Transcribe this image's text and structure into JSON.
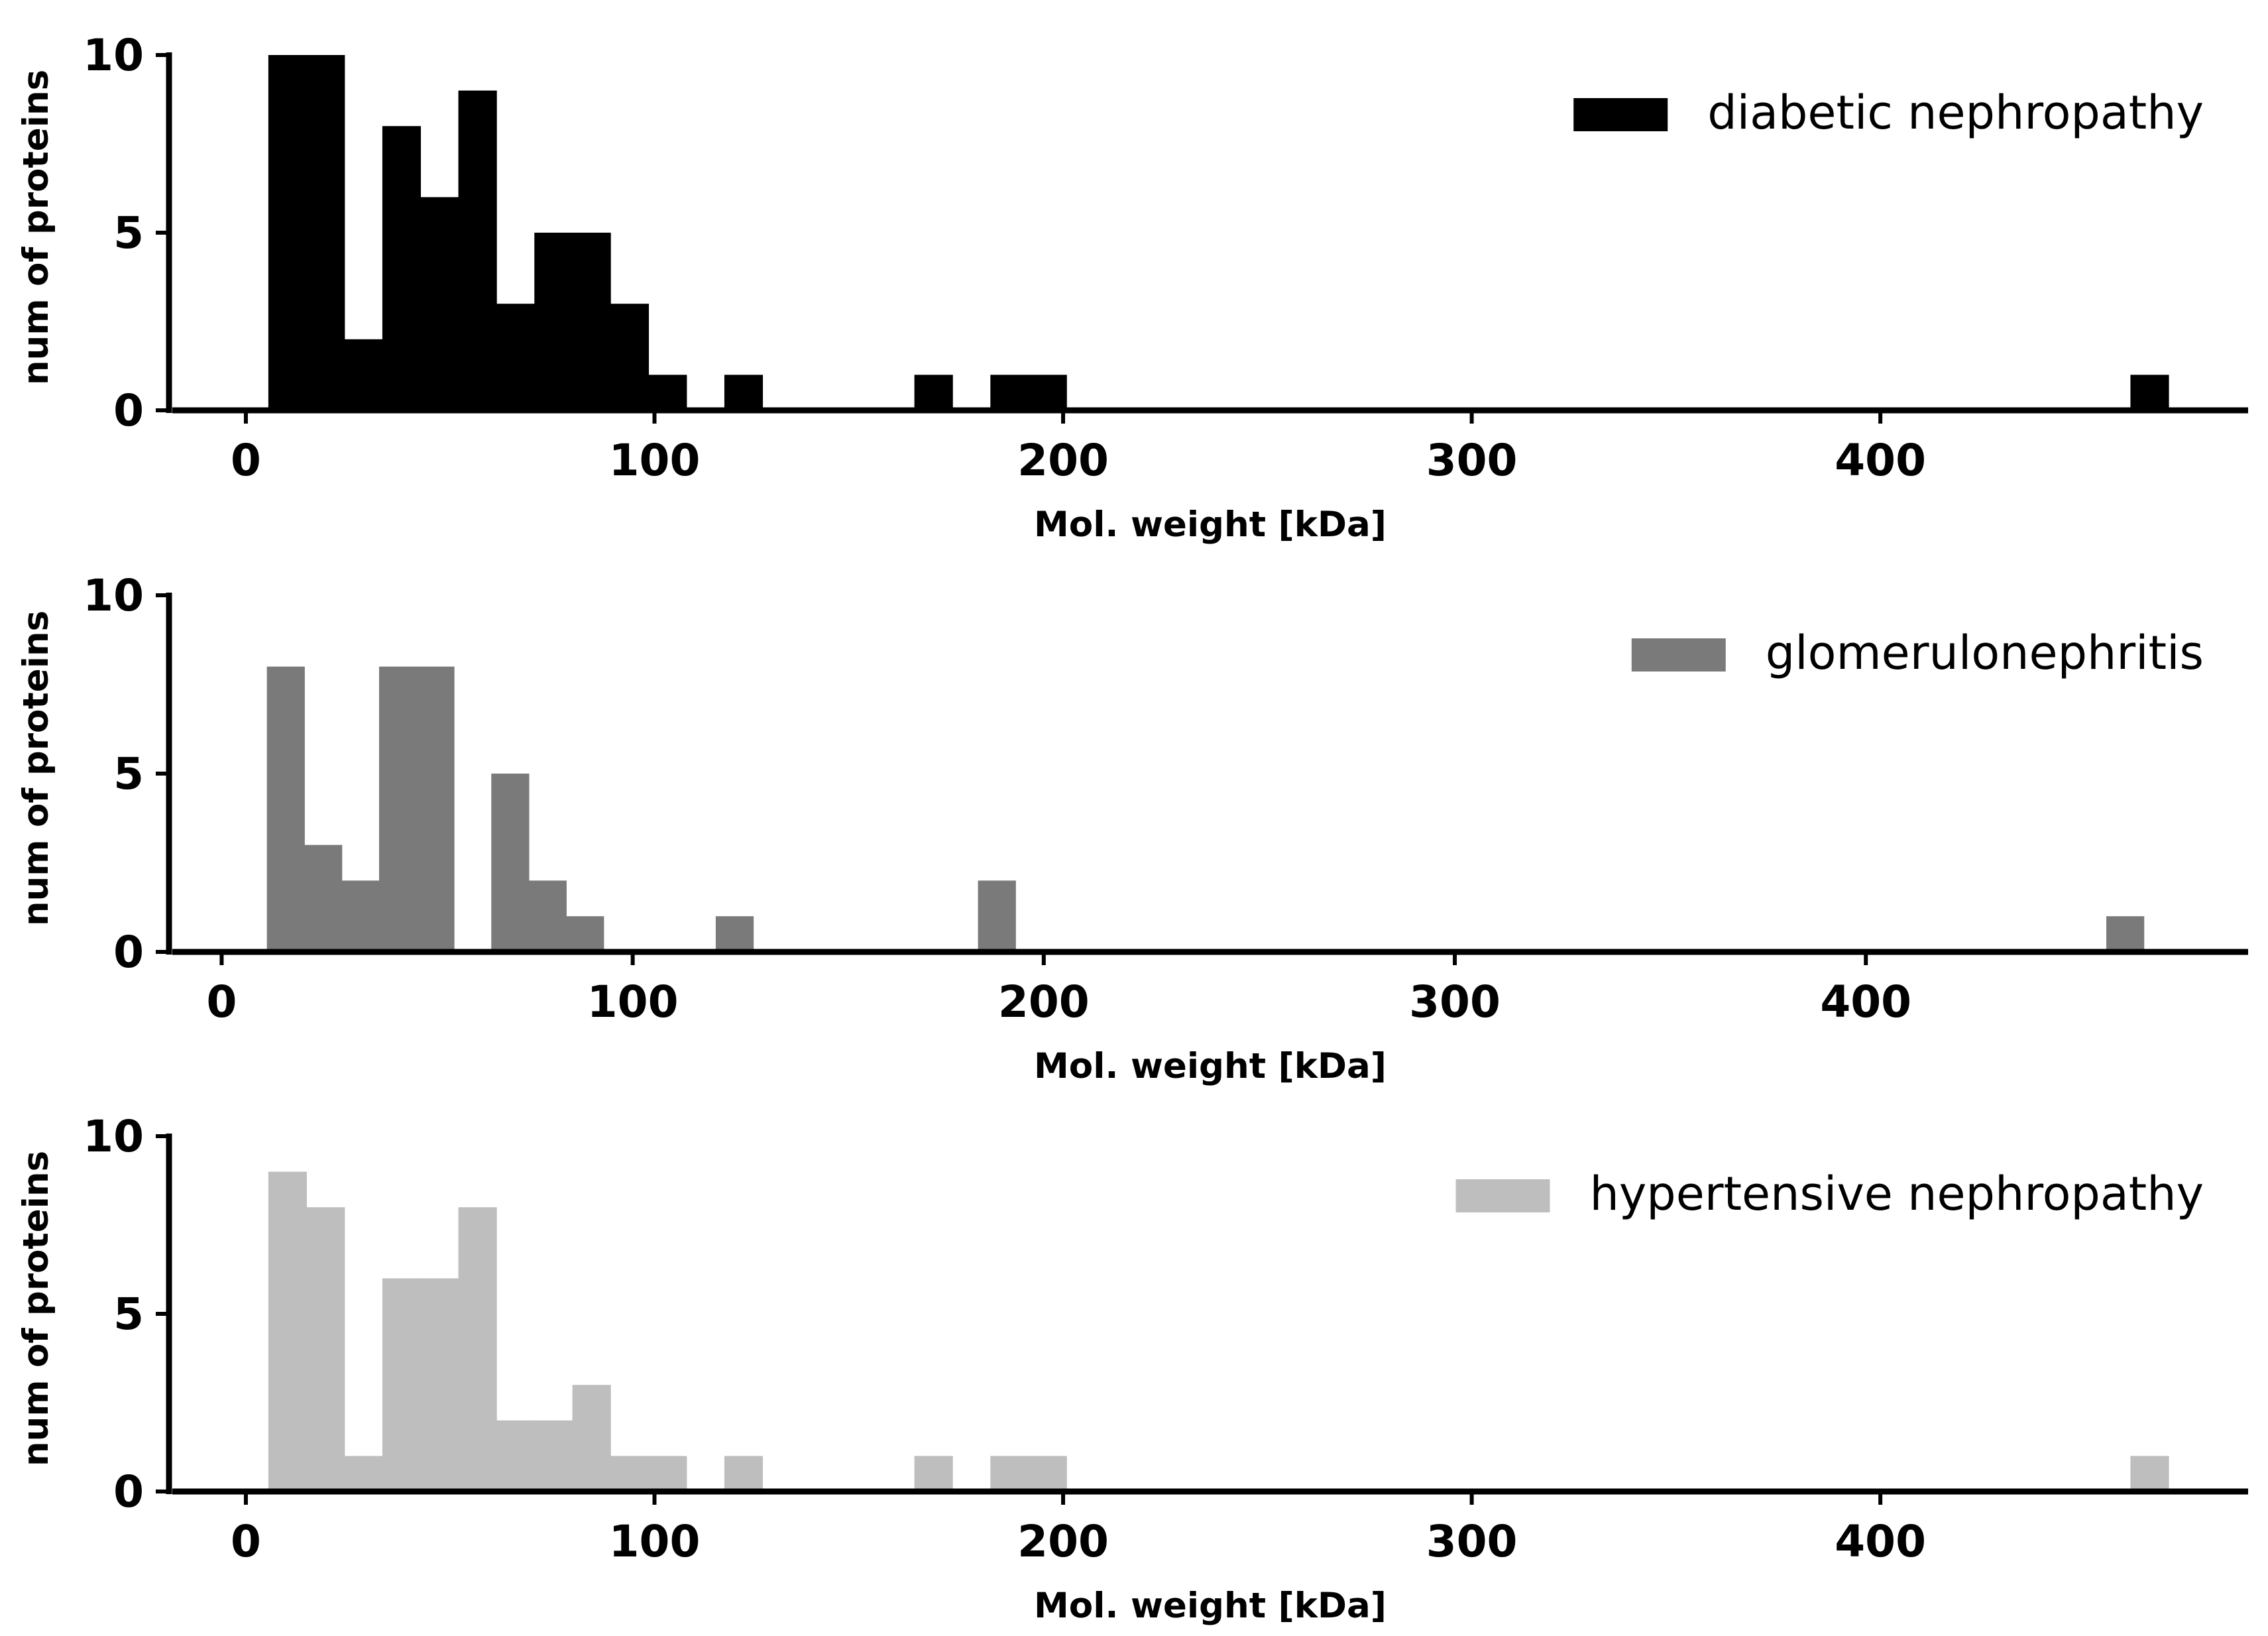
{
  "chart_data": [
    {
      "type": "bar",
      "title": "",
      "xlabel": "Mol. weight [kDa]",
      "ylabel": "num of proteins",
      "xlim": [
        -18,
        490
      ],
      "ylim": [
        0,
        10
      ],
      "xticks": [
        "0",
        "100",
        "200",
        "300",
        "400"
      ],
      "yticks": [
        "0",
        "5",
        "10"
      ],
      "legend": {
        "label": "diabetic nephropathy",
        "position": "upper right"
      },
      "color": "#000000",
      "bins": [
        {
          "x0": 5.5,
          "x1": 14.8,
          "count": 10
        },
        {
          "x0": 14.8,
          "x1": 24.1,
          "count": 10
        },
        {
          "x0": 24.1,
          "x1": 33.4,
          "count": 2
        },
        {
          "x0": 33.4,
          "x1": 42.7,
          "count": 8
        },
        {
          "x0": 42.7,
          "x1": 52.0,
          "count": 6
        },
        {
          "x0": 52.0,
          "x1": 61.3,
          "count": 9
        },
        {
          "x0": 61.3,
          "x1": 70.6,
          "count": 3
        },
        {
          "x0": 70.6,
          "x1": 79.9,
          "count": 5
        },
        {
          "x0": 79.9,
          "x1": 89.2,
          "count": 5
        },
        {
          "x0": 89.2,
          "x1": 98.5,
          "count": 3
        },
        {
          "x0": 98.5,
          "x1": 107.8,
          "count": 1
        },
        {
          "x0": 117.1,
          "x1": 126.4,
          "count": 1
        },
        {
          "x0": 163.6,
          "x1": 172.9,
          "count": 1
        },
        {
          "x0": 182.2,
          "x1": 191.5,
          "count": 1
        },
        {
          "x0": 191.5,
          "x1": 200.8,
          "count": 1
        },
        {
          "x0": 461.2,
          "x1": 470.5,
          "count": 1
        }
      ]
    },
    {
      "type": "bar",
      "title": "",
      "xlabel": "Mol. weight [kDa]",
      "ylabel": "num of proteins",
      "xlim": [
        -12,
        493
      ],
      "ylim": [
        0,
        10
      ],
      "xticks": [
        "0",
        "100",
        "200",
        "300",
        "400"
      ],
      "yticks": [
        "0",
        "5",
        "10"
      ],
      "legend": {
        "label": "glomerulonephritis",
        "position": "upper right"
      },
      "color": "#7a7a7a",
      "bins": [
        {
          "x0": 11.0,
          "x1": 20.1,
          "count": 8
        },
        {
          "x0": 20.1,
          "x1": 29.2,
          "count": 3
        },
        {
          "x0": 29.2,
          "x1": 38.3,
          "count": 2
        },
        {
          "x0": 38.3,
          "x1": 47.4,
          "count": 8
        },
        {
          "x0": 47.4,
          "x1": 56.5,
          "count": 8
        },
        {
          "x0": 65.6,
          "x1": 74.7,
          "count": 5
        },
        {
          "x0": 74.7,
          "x1": 83.8,
          "count": 2
        },
        {
          "x0": 83.8,
          "x1": 92.9,
          "count": 1
        },
        {
          "x0": 120.2,
          "x1": 129.3,
          "count": 1
        },
        {
          "x0": 184.0,
          "x1": 193.1,
          "count": 2
        },
        {
          "x0": 458.5,
          "x1": 467.6,
          "count": 1
        }
      ]
    },
    {
      "type": "bar",
      "title": "",
      "xlabel": "Mol. weight [kDa]",
      "ylabel": "num of proteins",
      "xlim": [
        -18,
        490
      ],
      "ylim": [
        0,
        10
      ],
      "xticks": [
        "0",
        "100",
        "200",
        "300",
        "400"
      ],
      "yticks": [
        "0",
        "5",
        "10"
      ],
      "legend": {
        "label": "hypertensive nephropathy",
        "position": "upper right"
      },
      "color": "#bebebe",
      "bins": [
        {
          "x0": 5.5,
          "x1": 14.8,
          "count": 9
        },
        {
          "x0": 14.8,
          "x1": 24.1,
          "count": 8
        },
        {
          "x0": 24.1,
          "x1": 33.4,
          "count": 1
        },
        {
          "x0": 33.4,
          "x1": 42.7,
          "count": 6
        },
        {
          "x0": 42.7,
          "x1": 52.0,
          "count": 6
        },
        {
          "x0": 52.0,
          "x1": 61.3,
          "count": 8
        },
        {
          "x0": 61.3,
          "x1": 70.6,
          "count": 2
        },
        {
          "x0": 70.6,
          "x1": 79.9,
          "count": 2
        },
        {
          "x0": 79.9,
          "x1": 89.2,
          "count": 3
        },
        {
          "x0": 89.2,
          "x1": 98.5,
          "count": 1
        },
        {
          "x0": 98.5,
          "x1": 107.8,
          "count": 1
        },
        {
          "x0": 117.1,
          "x1": 126.4,
          "count": 1
        },
        {
          "x0": 163.6,
          "x1": 172.9,
          "count": 1
        },
        {
          "x0": 182.2,
          "x1": 191.5,
          "count": 1
        },
        {
          "x0": 191.5,
          "x1": 200.8,
          "count": 1
        },
        {
          "x0": 461.2,
          "x1": 470.5,
          "count": 1
        }
      ]
    }
  ]
}
